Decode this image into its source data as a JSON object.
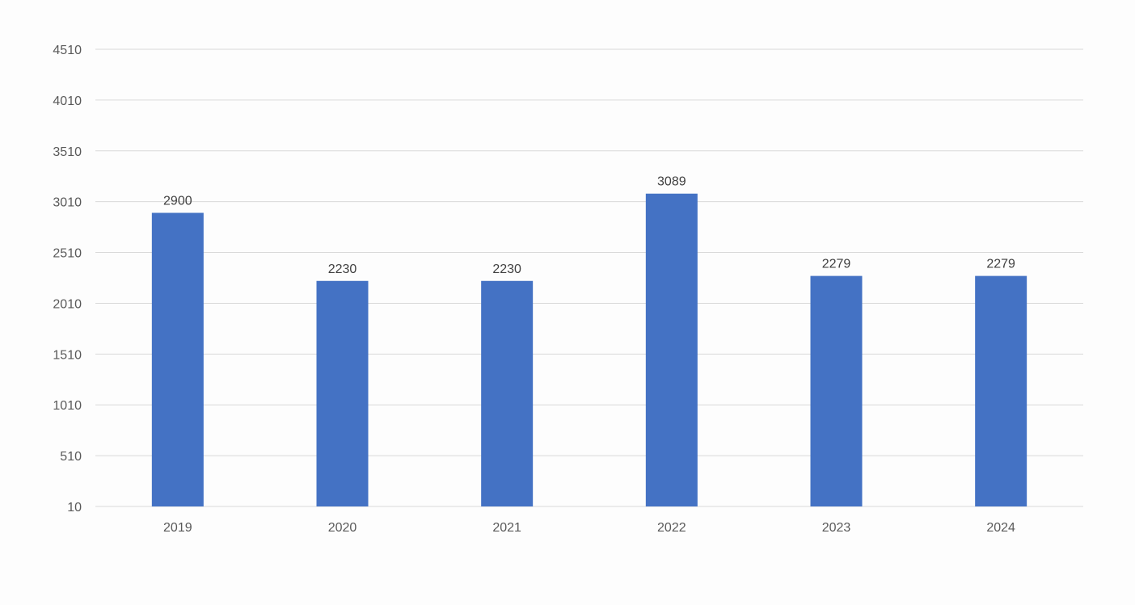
{
  "chart_data": {
    "type": "bar",
    "title": "",
    "xlabel": "",
    "ylabel": "",
    "categories": [
      "2019",
      "2020",
      "2021",
      "2022",
      "2023",
      "2024"
    ],
    "series": [
      {
        "values": [
          2900,
          2230,
          2230,
          3089,
          2279,
          2279
        ],
        "color": "#4472c4"
      }
    ],
    "ylim": [
      10,
      4510
    ],
    "yticks": [
      10,
      510,
      1010,
      1510,
      2010,
      2510,
      3010,
      3510,
      4010,
      4510
    ],
    "grid": true,
    "legend": "none",
    "data_labels": true
  }
}
